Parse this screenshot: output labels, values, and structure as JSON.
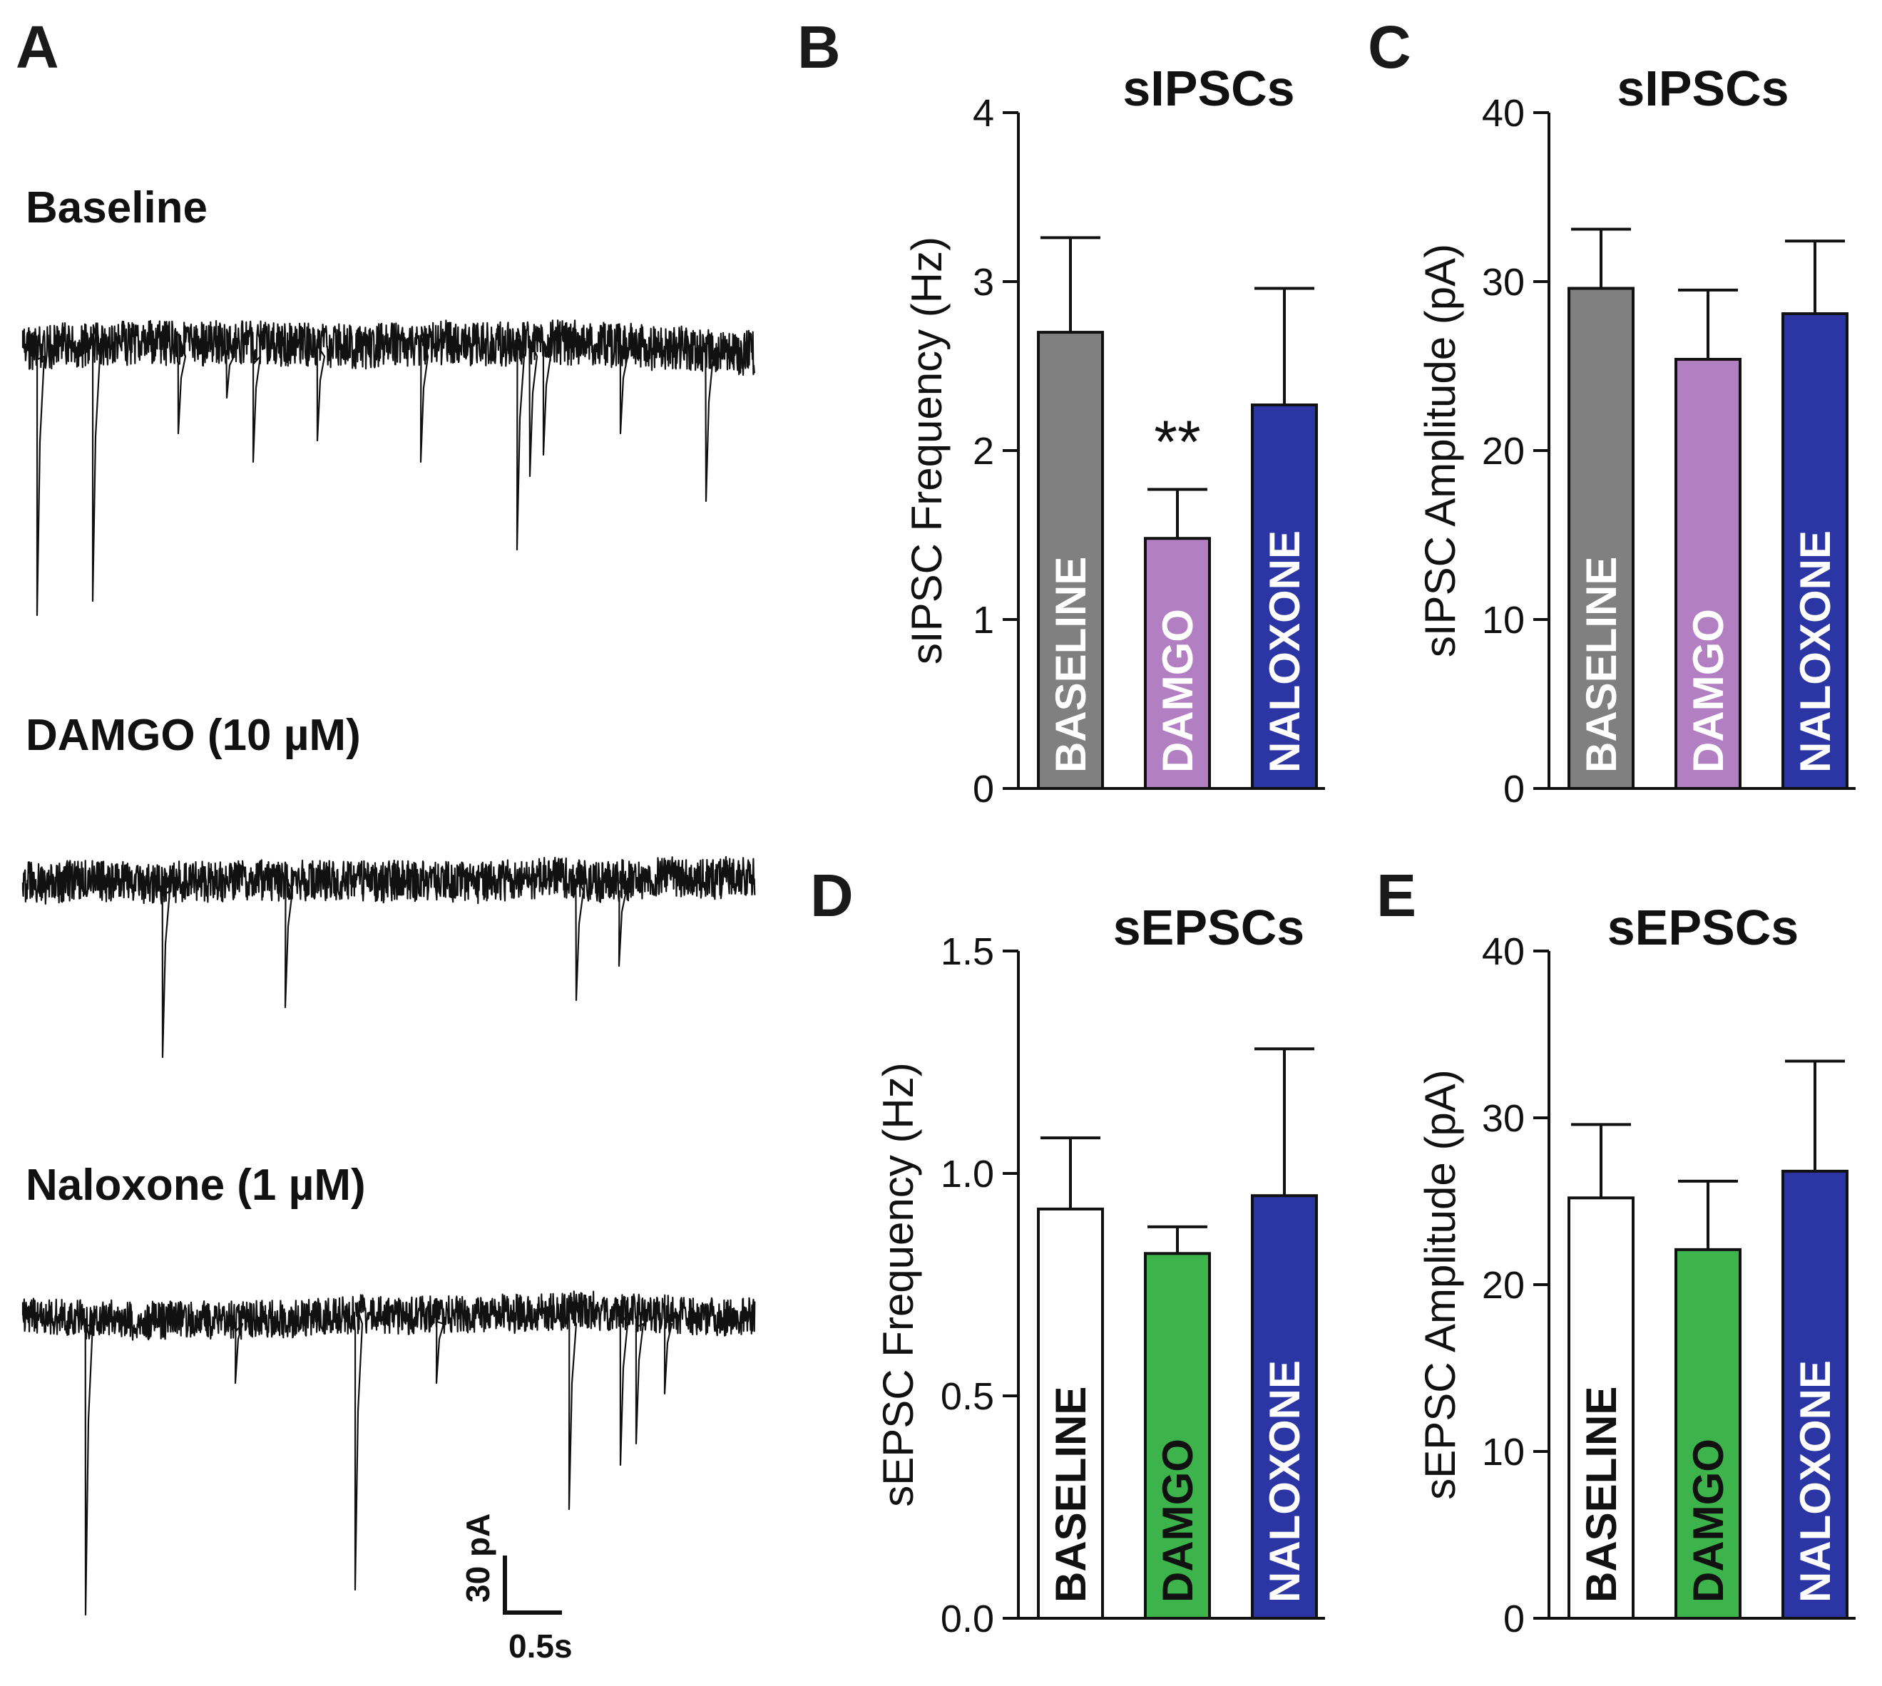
{
  "panel_letters": [
    "A",
    "B",
    "C",
    "D",
    "E"
  ],
  "traces": {
    "labels": [
      "Baseline",
      "DAMGO (10 µM)",
      "Naloxone (1 µM)"
    ],
    "scale_bar": {
      "current": "30 pA",
      "time": "0.5s"
    },
    "color": "#111111"
  },
  "chart_data": [
    {
      "panel": "B",
      "type": "bar",
      "title": "sIPSCs",
      "xlabel": "",
      "ylabel": "sIPSC Frequency (Hz)",
      "ylim": [
        0,
        4
      ],
      "yticks": [
        0,
        1,
        2,
        3,
        4
      ],
      "ytick_labels": [
        "0",
        "1",
        "2",
        "3",
        "4"
      ],
      "categories": [
        "BASELINE",
        "DAMGO",
        "NALOXONE"
      ],
      "values": [
        2.7,
        1.48,
        2.27
      ],
      "errors": [
        0.56,
        0.29,
        0.69
      ],
      "colors": [
        "#808080",
        "#b27fc2",
        "#2b35a3"
      ],
      "label_colors": [
        "#ffffff",
        "#ffffff",
        "#ffffff"
      ],
      "annotations": [
        {
          "category": "DAMGO",
          "text": "**"
        }
      ]
    },
    {
      "panel": "C",
      "type": "bar",
      "title": "sIPSCs",
      "xlabel": "",
      "ylabel": "sIPSC Amplitude (pA)",
      "ylim": [
        0,
        40
      ],
      "yticks": [
        0,
        10,
        20,
        30,
        40
      ],
      "ytick_labels": [
        "0",
        "10",
        "20",
        "30",
        "40"
      ],
      "categories": [
        "BASELINE",
        "DAMGO",
        "NALOXONE"
      ],
      "values": [
        29.6,
        25.4,
        28.1
      ],
      "errors": [
        3.5,
        4.1,
        4.3
      ],
      "colors": [
        "#808080",
        "#b27fc2",
        "#2b35a3"
      ],
      "label_colors": [
        "#ffffff",
        "#ffffff",
        "#ffffff"
      ],
      "annotations": []
    },
    {
      "panel": "D",
      "type": "bar",
      "title": "sEPSCs",
      "xlabel": "",
      "ylabel": "sEPSC Frequency (Hz)",
      "ylim": [
        0,
        1.5
      ],
      "yticks": [
        0,
        0.5,
        1.0,
        1.5
      ],
      "ytick_labels": [
        "0.0",
        "0.5",
        "1.0",
        "1.5"
      ],
      "categories": [
        "BASELINE",
        "DAMGO",
        "NALOXONE"
      ],
      "values": [
        0.92,
        0.82,
        0.95
      ],
      "errors": [
        0.16,
        0.06,
        0.33
      ],
      "colors": [
        "#ffffff",
        "#3cb44b",
        "#2b35a3"
      ],
      "label_colors": [
        "#111111",
        "#111111",
        "#ffffff"
      ],
      "annotations": []
    },
    {
      "panel": "E",
      "type": "bar",
      "title": "sEPSCs",
      "xlabel": "",
      "ylabel": "sEPSC Amplitude (pA)",
      "ylim": [
        0,
        40
      ],
      "yticks": [
        0,
        10,
        20,
        30,
        40
      ],
      "ytick_labels": [
        "0",
        "10",
        "20",
        "30",
        "40"
      ],
      "categories": [
        "BASELINE",
        "DAMGO",
        "NALOXONE"
      ],
      "values": [
        25.2,
        22.1,
        26.8
      ],
      "errors": [
        4.4,
        4.1,
        6.6
      ],
      "colors": [
        "#ffffff",
        "#3cb44b",
        "#2b35a3"
      ],
      "label_colors": [
        "#111111",
        "#111111",
        "#ffffff"
      ],
      "annotations": []
    }
  ]
}
